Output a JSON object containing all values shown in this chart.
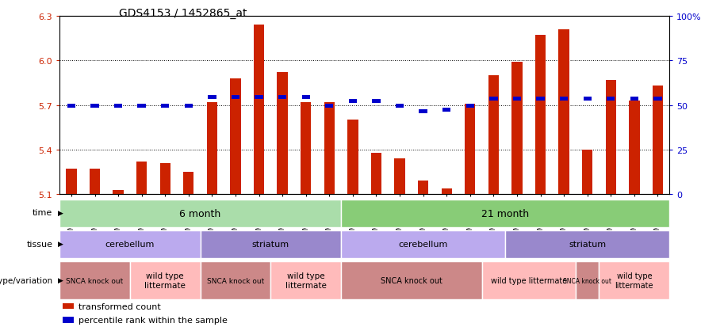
{
  "title": "GDS4153 / 1452865_at",
  "samples": [
    "GSM487049",
    "GSM487050",
    "GSM487051",
    "GSM487046",
    "GSM487047",
    "GSM487048",
    "GSM487055",
    "GSM487056",
    "GSM487057",
    "GSM487052",
    "GSM487053",
    "GSM487054",
    "GSM487062",
    "GSM487063",
    "GSM487064",
    "GSM487065",
    "GSM487058",
    "GSM487059",
    "GSM487060",
    "GSM487061",
    "GSM487069",
    "GSM487070",
    "GSM487071",
    "GSM487066",
    "GSM487067",
    "GSM487068"
  ],
  "bar_values": [
    5.27,
    5.27,
    5.13,
    5.32,
    5.31,
    5.25,
    5.72,
    5.88,
    6.24,
    5.92,
    5.72,
    5.72,
    5.6,
    5.38,
    5.34,
    5.19,
    5.14,
    5.71,
    5.9,
    5.99,
    6.17,
    6.21,
    5.4,
    5.87,
    5.73,
    5.83
  ],
  "dot_values": [
    5.695,
    5.695,
    5.695,
    5.695,
    5.695,
    5.695,
    5.755,
    5.755,
    5.755,
    5.755,
    5.755,
    5.695,
    5.725,
    5.725,
    5.695,
    5.655,
    5.67,
    5.695,
    5.745,
    5.745,
    5.745,
    5.745,
    5.745,
    5.745,
    5.745,
    5.745
  ],
  "ymin": 5.1,
  "ymax": 6.3,
  "yticks_left": [
    5.1,
    5.4,
    5.7,
    6.0,
    6.3
  ],
  "yticks_right": [
    0,
    25,
    50,
    75,
    100
  ],
  "yticks_right_labels": [
    "0",
    "25",
    "50",
    "75",
    "100%"
  ],
  "grid_lines": [
    5.4,
    5.7,
    6.0
  ],
  "bar_color": "#cc2200",
  "dot_color": "#0000cc",
  "time_row": {
    "label": "time",
    "groups": [
      {
        "text": "6 month",
        "start": 0,
        "end": 11,
        "color": "#aaddaa"
      },
      {
        "text": "21 month",
        "start": 12,
        "end": 25,
        "color": "#88cc77"
      }
    ]
  },
  "tissue_row": {
    "label": "tissue",
    "groups": [
      {
        "text": "cerebellum",
        "start": 0,
        "end": 5,
        "color": "#bbaaee"
      },
      {
        "text": "striatum",
        "start": 6,
        "end": 11,
        "color": "#9988cc"
      },
      {
        "text": "cerebellum",
        "start": 12,
        "end": 18,
        "color": "#bbaaee"
      },
      {
        "text": "striatum",
        "start": 19,
        "end": 25,
        "color": "#9988cc"
      }
    ]
  },
  "genotype_row": {
    "label": "genotype/variation",
    "groups": [
      {
        "text": "SNCA knock out",
        "start": 0,
        "end": 2,
        "color": "#cc8888",
        "fontsize": 6.5
      },
      {
        "text": "wild type\nlittermate",
        "start": 3,
        "end": 5,
        "color": "#ffbbbb",
        "fontsize": 7.5
      },
      {
        "text": "SNCA knock out",
        "start": 6,
        "end": 8,
        "color": "#cc8888",
        "fontsize": 6.5
      },
      {
        "text": "wild type\nlittermate",
        "start": 9,
        "end": 11,
        "color": "#ffbbbb",
        "fontsize": 7.5
      },
      {
        "text": "SNCA knock out",
        "start": 12,
        "end": 17,
        "color": "#cc8888",
        "fontsize": 7
      },
      {
        "text": "wild type littermate",
        "start": 18,
        "end": 21,
        "color": "#ffbbbb",
        "fontsize": 7
      },
      {
        "text": "SNCA knock out",
        "start": 22,
        "end": 22,
        "color": "#cc8888",
        "fontsize": 5.5
      },
      {
        "text": "wild type\nlittermate",
        "start": 23,
        "end": 25,
        "color": "#ffbbbb",
        "fontsize": 7
      }
    ]
  },
  "legend_items": [
    {
      "color": "#cc2200",
      "label": "transformed count"
    },
    {
      "color": "#0000cc",
      "label": "percentile rank within the sample"
    }
  ]
}
